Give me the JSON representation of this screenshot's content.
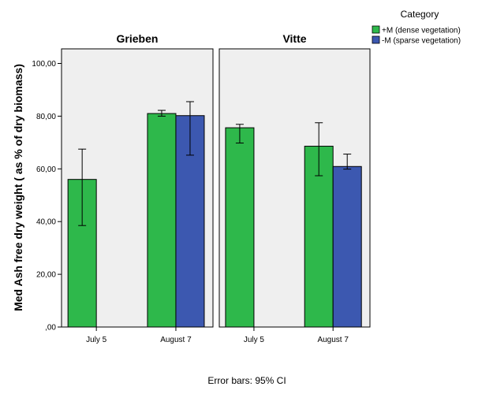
{
  "chart_data": {
    "type": "bar",
    "ylabel": "Med Ash free dry weight ( as % of dry biomass)",
    "ylim": [
      0,
      100
    ],
    "yticks": [
      0,
      20,
      40,
      60,
      80,
      100
    ],
    "ytick_labels": [
      ",00",
      "20,00",
      "40,00",
      "60,00",
      "80,00",
      "100,00"
    ],
    "categories": [
      "July 5",
      "August 7"
    ],
    "legend": {
      "title": "Category",
      "position": "top-right",
      "entries": [
        {
          "name": "+M (dense vegetation)",
          "color": "#2eb84b"
        },
        {
          "name": "-M (sparse vegetation)",
          "color": "#3c58b0"
        }
      ]
    },
    "panels": [
      {
        "title": "Grieben",
        "series": [
          {
            "name": "+M (dense vegetation)",
            "values": [
              56.0,
              81.0
            ],
            "ci_low": [
              38.5,
              80.0
            ],
            "ci_high": [
              67.5,
              82.2
            ]
          },
          {
            "name": "-M (sparse vegetation)",
            "values": [
              null,
              80.2
            ],
            "ci_low": [
              null,
              65.2
            ],
            "ci_high": [
              null,
              85.5
            ]
          }
        ]
      },
      {
        "title": "Vitte",
        "series": [
          {
            "name": "+M (dense vegetation)",
            "values": [
              75.6,
              68.6
            ],
            "ci_low": [
              69.8,
              57.4
            ],
            "ci_high": [
              76.9,
              77.5
            ]
          },
          {
            "name": "-M (sparse vegetation)",
            "values": [
              null,
              60.9
            ],
            "ci_low": [
              null,
              59.9
            ],
            "ci_high": [
              null,
              65.6
            ]
          }
        ]
      }
    ],
    "note": "Error bars: 95% CI",
    "grid": false,
    "panel_background": "#efefef"
  }
}
